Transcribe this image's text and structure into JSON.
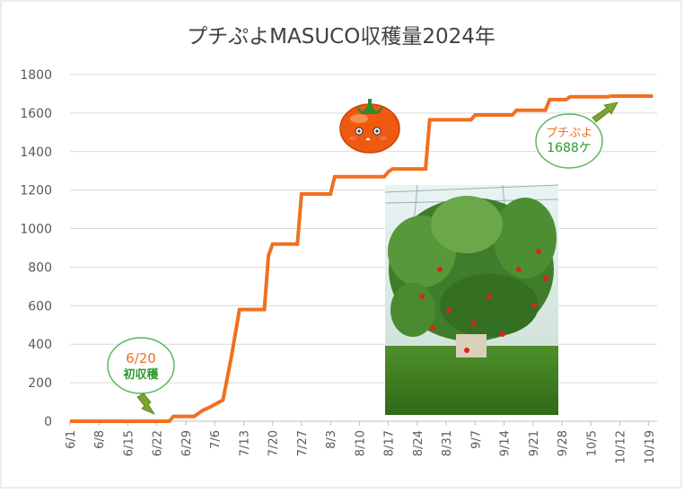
{
  "chart_data": {
    "type": "line",
    "title": "プチぷよMASUCO収穫量2024年",
    "xlabel": "",
    "ylabel": "",
    "ylim": [
      0,
      1800
    ],
    "yticks": [
      0,
      200,
      400,
      600,
      800,
      1000,
      1200,
      1400,
      1600,
      1800
    ],
    "xticks": [
      "6/1",
      "6/8",
      "6/15",
      "6/22",
      "6/29",
      "7/6",
      "7/13",
      "7/20",
      "7/27",
      "8/3",
      "8/10",
      "8/17",
      "8/24",
      "8/31",
      "9/7",
      "9/14",
      "9/21",
      "9/28",
      "10/5",
      "10/12",
      "10/19"
    ],
    "grid": true,
    "legend": "none",
    "line_color": "#F07020",
    "series": [
      {
        "x": [
          "2024-06-01",
          "2024-06-20",
          "2024-06-25",
          "2024-06-26",
          "2024-07-01",
          "2024-07-03",
          "2024-07-05",
          "2024-07-08",
          "2024-07-10",
          "2024-07-12",
          "2024-07-18",
          "2024-07-19",
          "2024-07-20",
          "2024-07-26",
          "2024-07-27",
          "2024-08-03",
          "2024-08-04",
          "2024-08-16",
          "2024-08-17",
          "2024-08-18",
          "2024-08-26",
          "2024-08-27",
          "2024-09-06",
          "2024-09-07",
          "2024-09-16",
          "2024-09-17",
          "2024-09-24",
          "2024-09-25",
          "2024-09-29",
          "2024-09-30",
          "2024-10-09",
          "2024-10-10",
          "2024-10-20"
        ],
        "y": [
          0,
          0,
          0,
          25,
          25,
          55,
          75,
          110,
          330,
          580,
          580,
          860,
          920,
          920,
          1180,
          1180,
          1270,
          1270,
          1295,
          1310,
          1310,
          1565,
          1565,
          1590,
          1590,
          1615,
          1615,
          1670,
          1670,
          1685,
          1685,
          1688,
          1688
        ]
      }
    ],
    "annotations": [
      {
        "name": "first-harvest",
        "date": "6/20",
        "text": "初収穫",
        "pointer_x": "2024-06-20",
        "pointer_y": 0
      },
      {
        "name": "total",
        "text": "プチぷよ",
        "count": "1688ケ",
        "pointer_x": "2024-10-12",
        "pointer_y": 1688
      }
    ],
    "pictures": [
      "tomato-mascot",
      "tomato-plant-photo"
    ]
  }
}
